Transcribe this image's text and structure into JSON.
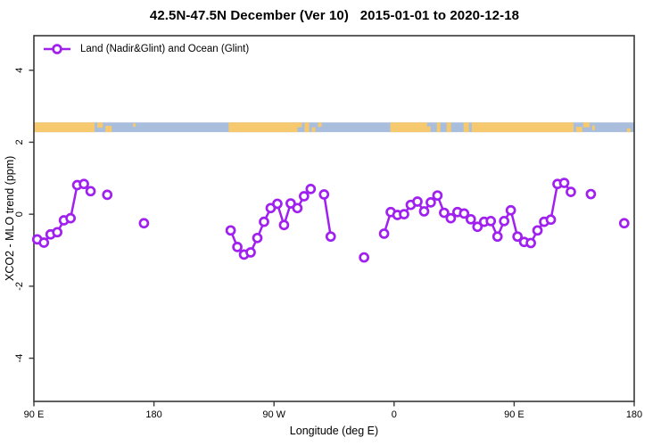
{
  "chart_data": {
    "type": "line",
    "title": "42.5N-47.5N December (Ver 10)   2015-01-01 to 2020-12-18",
    "xlabel": "Longitude (deg E)",
    "ylabel": "XCO2 - MLO trend (ppm)",
    "legend": {
      "label": "Land (Nadir&Glint) and Ocean (Glint)",
      "position": "top-left"
    },
    "xlim": [
      90,
      540
    ],
    "ylim": [
      -5.2,
      4.96
    ],
    "grid": false,
    "x_ticks": [
      {
        "value": 90,
        "label": "90 E"
      },
      {
        "value": 180,
        "label": "180"
      },
      {
        "value": 270,
        "label": "90 W"
      },
      {
        "value": 360,
        "label": "0"
      },
      {
        "value": 450,
        "label": "90 E"
      },
      {
        "value": 540,
        "label": "180"
      }
    ],
    "y_ticks": [
      {
        "value": -4,
        "label": "-4"
      },
      {
        "value": -2,
        "label": "-2"
      },
      {
        "value": 0,
        "label": "0"
      },
      {
        "value": 2,
        "label": "2"
      },
      {
        "value": 4,
        "label": "4"
      }
    ],
    "colors": {
      "series": "#A020F0",
      "marker_fill": "#ffffff",
      "land": "#F6C96F",
      "ocean": "#A9BEDC",
      "axis": "#383838",
      "text": "#000000"
    },
    "map_strip": {
      "y_top": 2.55,
      "y_bottom": 2.28,
      "land_patches": [
        [
          90,
          135.5,
          0,
          1
        ],
        [
          137.5,
          141.6,
          0,
          0.55
        ],
        [
          143.6,
          148.3,
          0.35,
          0.65
        ],
        [
          164.3,
          166.3,
          0.1,
          0.35
        ],
        [
          236.0,
          287.6,
          0,
          1
        ],
        [
          287.6,
          290.9,
          0,
          0.5
        ],
        [
          292.9,
          296.3,
          0,
          1
        ],
        [
          298.3,
          301.0,
          0.5,
          0.5
        ],
        [
          303.0,
          305.7,
          0,
          0.45
        ],
        [
          357.2,
          384.7,
          0,
          1
        ],
        [
          384.7,
          387.4,
          0.4,
          0.6
        ],
        [
          392.0,
          394.7,
          0,
          1
        ],
        [
          399.4,
          402.7,
          0,
          1
        ],
        [
          412.1,
          416.1,
          0,
          1
        ],
        [
          418.2,
          494.5,
          0,
          1
        ],
        [
          496.5,
          501.1,
          0.45,
          0.55
        ],
        [
          501.8,
          506.5,
          0,
          0.5
        ],
        [
          508.5,
          510.5,
          0.3,
          0.5
        ],
        [
          534.6,
          537.3,
          0.6,
          0.4
        ]
      ]
    },
    "series": [
      {
        "name": "Land (Nadir&Glint) and Ocean (Glint)",
        "segments": [
          [
            [
              92.5,
              -0.7
            ],
            [
              97.5,
              -0.79
            ],
            [
              102.5,
              -0.56
            ],
            [
              107.5,
              -0.5
            ],
            [
              112.5,
              -0.17
            ],
            [
              117.5,
              -0.11
            ],
            [
              122.5,
              0.81
            ],
            [
              127.5,
              0.84
            ],
            [
              132.5,
              0.64
            ]
          ],
          [
            [
              145,
              0.54
            ]
          ],
          [
            [
              172.5,
              -0.25
            ]
          ],
          [
            [
              237.5,
              -0.45
            ],
            [
              242.5,
              -0.91
            ],
            [
              247.5,
              -1.12
            ],
            [
              252.5,
              -1.06
            ],
            [
              257.5,
              -0.66
            ],
            [
              262.5,
              -0.21
            ],
            [
              267.5,
              0.17
            ],
            [
              272.5,
              0.29
            ],
            [
              277.5,
              -0.3
            ],
            [
              282.5,
              0.3
            ],
            [
              287.5,
              0.17
            ],
            [
              292.5,
              0.5
            ],
            [
              297.5,
              0.7
            ]
          ],
          [
            [
              307.5,
              0.55
            ],
            [
              312.5,
              -0.62
            ]
          ],
          [
            [
              337.5,
              -1.2
            ]
          ],
          [
            [
              352.5,
              -0.54
            ],
            [
              357.5,
              0.06
            ],
            [
              362.5,
              -0.02
            ],
            [
              367.5,
              0.0
            ],
            [
              372.5,
              0.26
            ],
            [
              377.5,
              0.35
            ],
            [
              382.5,
              0.08
            ],
            [
              387.5,
              0.33
            ],
            [
              392.5,
              0.52
            ],
            [
              397.5,
              0.04
            ],
            [
              402.5,
              -0.11
            ],
            [
              407.5,
              0.06
            ],
            [
              412.5,
              0.02
            ],
            [
              417.5,
              -0.14
            ],
            [
              422.5,
              -0.35
            ],
            [
              427.5,
              -0.21
            ],
            [
              432.5,
              -0.19
            ],
            [
              437.5,
              -0.62
            ],
            [
              442.5,
              -0.19
            ],
            [
              447.5,
              0.11
            ],
            [
              452.5,
              -0.62
            ],
            [
              457.5,
              -0.77
            ],
            [
              462.5,
              -0.8
            ],
            [
              467.5,
              -0.45
            ],
            [
              472.5,
              -0.21
            ],
            [
              477.5,
              -0.15
            ],
            [
              482.5,
              0.84
            ],
            [
              487.5,
              0.87
            ],
            [
              492.5,
              0.62
            ]
          ],
          [
            [
              507.5,
              0.56
            ]
          ],
          [
            [
              532.5,
              -0.25
            ]
          ]
        ]
      }
    ]
  }
}
